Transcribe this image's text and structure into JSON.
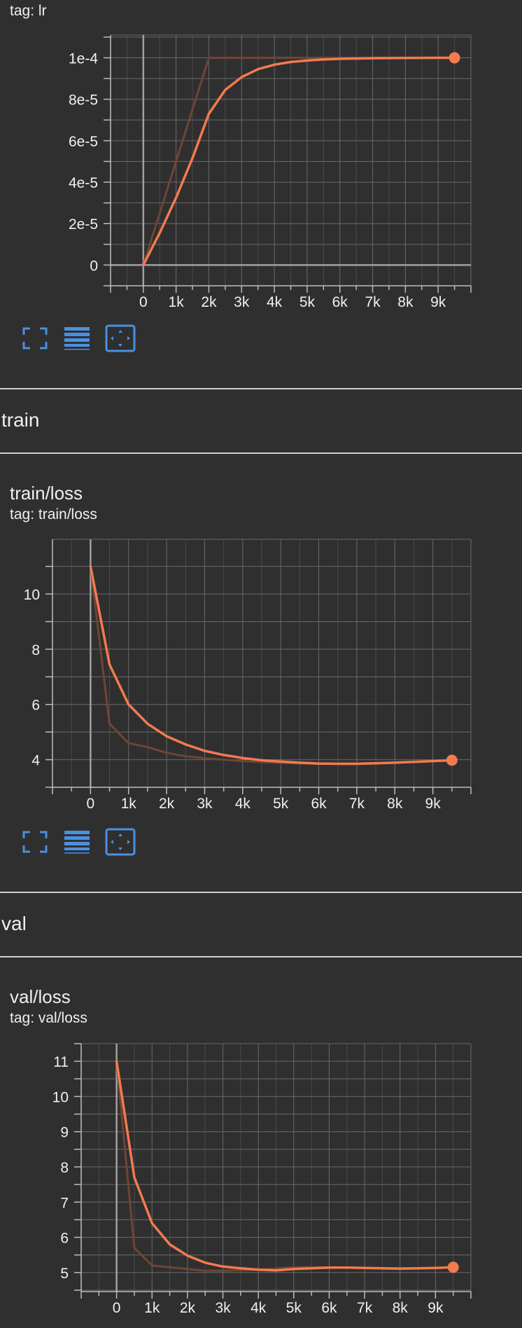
{
  "lr_card": {
    "tag": "tag: lr"
  },
  "train_section": {
    "title": "train"
  },
  "train_card": {
    "title": "train/loss",
    "tag": "tag: train/loss"
  },
  "val_section": {
    "title": "val"
  },
  "val_card": {
    "title": "val/loss",
    "tag": "tag: val/loss"
  },
  "toolbar": {
    "icons": [
      "fullscreen-icon",
      "data-table-icon",
      "fit-domain-icon"
    ],
    "accent": "#4a90e2"
  },
  "colors": {
    "smoothed": "#f47a4f",
    "raw": "#6e4536",
    "grid": "#6a6a6a",
    "background": "#2f2f2f"
  },
  "chart_data": [
    {
      "type": "line",
      "id": "lr",
      "x_ticks": [
        0,
        1000,
        2000,
        3000,
        4000,
        5000,
        6000,
        7000,
        8000,
        9000
      ],
      "x_tick_labels": [
        "0",
        "1k",
        "2k",
        "3k",
        "4k",
        "5k",
        "6k",
        "7k",
        "8k",
        "9k"
      ],
      "y_ticks": [
        0,
        2e-05,
        4e-05,
        6e-05,
        8e-05,
        0.0001
      ],
      "y_tick_labels": [
        "0",
        "2e-5",
        "4e-5",
        "6e-5",
        "8e-5",
        "1e-4"
      ],
      "xlim": [
        -1000,
        10000
      ],
      "ylim": [
        -1e-05,
        0.000111
      ],
      "grid": true,
      "series": [
        {
          "role": "raw",
          "x": [
            0,
            2000,
            3000,
            4000,
            5000,
            6000,
            7000,
            8000,
            9000,
            9500
          ],
          "y": [
            0,
            0.0001,
            0.0001,
            0.0001,
            0.0001,
            0.0001,
            0.0001,
            0.0001,
            0.0001,
            0.0001
          ]
        },
        {
          "role": "smoothed",
          "x": [
            0,
            500,
            1000,
            1500,
            2000,
            2500,
            3000,
            3500,
            4000,
            4500,
            5000,
            5500,
            6000,
            7000,
            8000,
            9000,
            9500
          ],
          "y": [
            0,
            1.55e-05,
            3.25e-05,
            5.15e-05,
            7.3e-05,
            8.45e-05,
            9.07e-05,
            9.45e-05,
            9.67e-05,
            9.8e-05,
            9.87e-05,
            9.92e-05,
            9.95e-05,
            9.98e-05,
            9.99e-05,
            0.0001,
            0.0001
          ]
        }
      ],
      "last_point": [
        9500,
        0.0001
      ]
    },
    {
      "type": "line",
      "id": "train-loss",
      "x_ticks": [
        0,
        1000,
        2000,
        3000,
        4000,
        5000,
        6000,
        7000,
        8000,
        9000
      ],
      "x_tick_labels": [
        "0",
        "1k",
        "2k",
        "3k",
        "4k",
        "5k",
        "6k",
        "7k",
        "8k",
        "9k"
      ],
      "y_ticks": [
        4,
        6,
        8,
        10
      ],
      "y_tick_labels": [
        "4",
        "6",
        "8",
        "10"
      ],
      "xlim": [
        -1000,
        10000
      ],
      "ylim": [
        3.0,
        11.98
      ],
      "grid": true,
      "series": [
        {
          "role": "raw",
          "x": [
            0,
            500,
            1000,
            1500,
            2000,
            2500,
            3000,
            4000,
            5000,
            6000,
            7000,
            8000,
            9000,
            9500
          ],
          "y": [
            11,
            5.3,
            4.6,
            4.45,
            4.25,
            4.12,
            4.05,
            3.95,
            3.88,
            3.85,
            3.86,
            3.9,
            3.95,
            3.97
          ]
        },
        {
          "role": "smoothed",
          "x": [
            0,
            500,
            1000,
            1500,
            2000,
            2500,
            3000,
            3500,
            4000,
            4500,
            5000,
            5500,
            6000,
            6500,
            7000,
            7500,
            8000,
            8500,
            9000,
            9500
          ],
          "y": [
            11,
            7.45,
            6.0,
            5.3,
            4.85,
            4.55,
            4.32,
            4.17,
            4.06,
            3.98,
            3.93,
            3.89,
            3.86,
            3.85,
            3.85,
            3.87,
            3.89,
            3.92,
            3.95,
            3.98
          ]
        }
      ],
      "last_point": [
        9500,
        3.98
      ]
    },
    {
      "type": "line",
      "id": "val-loss",
      "x_ticks": [
        0,
        1000,
        2000,
        3000,
        4000,
        5000,
        6000,
        7000,
        8000,
        9000
      ],
      "x_tick_labels": [
        "0",
        "1k",
        "2k",
        "3k",
        "4k",
        "5k",
        "6k",
        "7k",
        "8k",
        "9k"
      ],
      "y_ticks": [
        5,
        6,
        7,
        8,
        9,
        10,
        11
      ],
      "y_tick_labels": [
        "5",
        "6",
        "7",
        "8",
        "9",
        "10",
        "11"
      ],
      "xlim": [
        -1000,
        10000
      ],
      "ylim": [
        4.46,
        11.5
      ],
      "grid": true,
      "series": [
        {
          "role": "raw",
          "x": [
            0,
            500,
            1000,
            2000,
            2500,
            3000,
            4000,
            5000,
            6000,
            7000,
            8000,
            9000,
            9500
          ],
          "y": [
            11,
            5.7,
            5.2,
            5.1,
            5.05,
            5.05,
            5.08,
            5.15,
            5.15,
            5.13,
            5.12,
            5.12,
            5.15
          ]
        },
        {
          "role": "smoothed",
          "x": [
            0,
            500,
            1000,
            1500,
            2000,
            2500,
            3000,
            3500,
            4000,
            4500,
            5000,
            5500,
            6000,
            6500,
            7000,
            7500,
            8000,
            8500,
            9000,
            9500
          ],
          "y": [
            11,
            7.7,
            6.4,
            5.8,
            5.48,
            5.28,
            5.17,
            5.12,
            5.08,
            5.06,
            5.1,
            5.12,
            5.14,
            5.14,
            5.13,
            5.12,
            5.11,
            5.12,
            5.13,
            5.15
          ]
        }
      ],
      "last_point": [
        9500,
        5.15
      ]
    }
  ]
}
